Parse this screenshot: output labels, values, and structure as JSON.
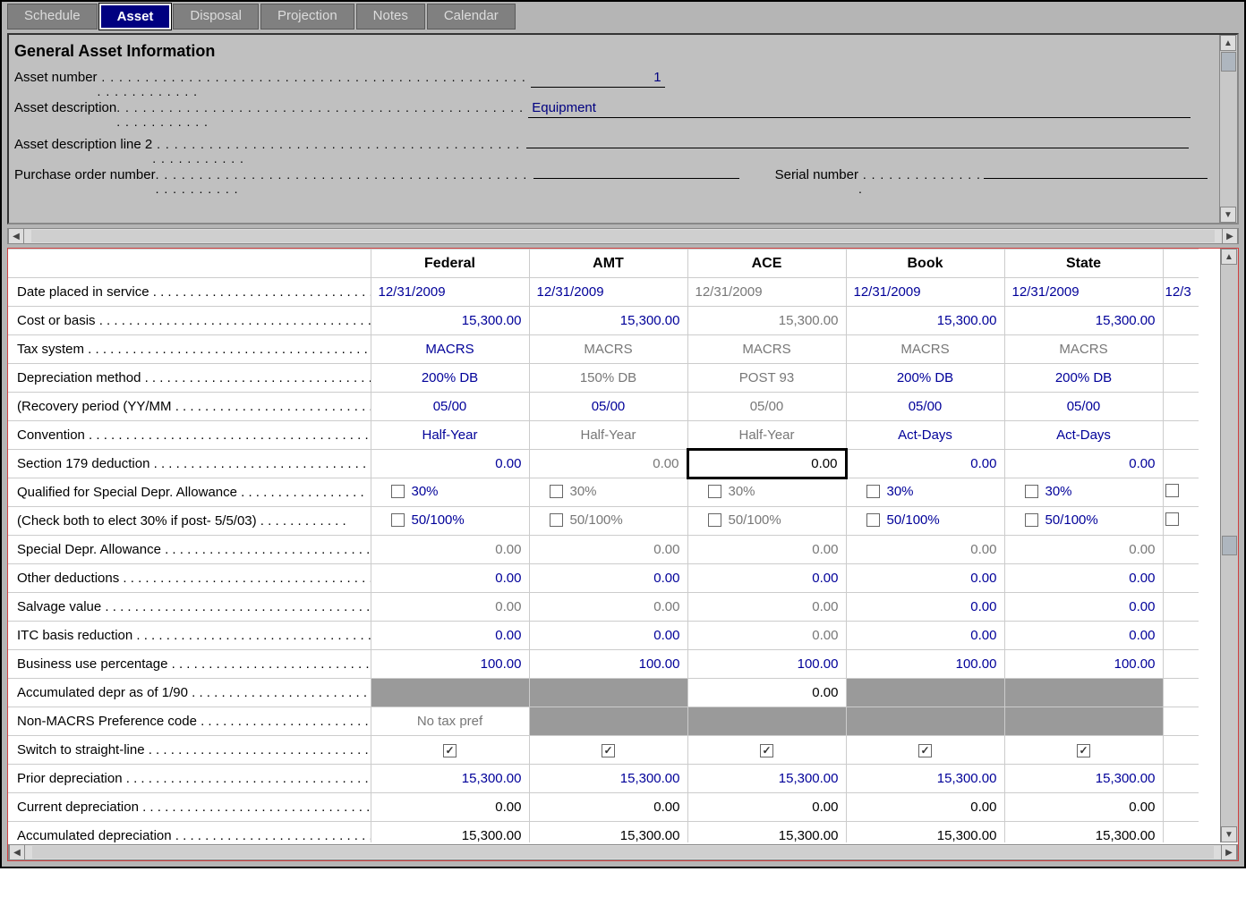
{
  "tabs": [
    "Schedule",
    "Asset",
    "Disposal",
    "Projection",
    "Notes",
    "Calendar"
  ],
  "active_tab": 1,
  "section_title": "General Asset Information",
  "info": {
    "asset_number_label": "Asset number",
    "asset_number": "1",
    "asset_description_label": "Asset description",
    "asset_description": "Equipment",
    "asset_description2_label": "Asset description line 2",
    "asset_description2": "",
    "po_label": "Purchase order number",
    "po": "",
    "serial_label": "Serial number",
    "serial": ""
  },
  "columns": [
    "Federal",
    "AMT",
    "ACE",
    "Book",
    "State"
  ],
  "row_labels": {
    "date": "Date placed in service",
    "cost": "Cost or basis",
    "taxsys": "Tax system",
    "depmethod": "Depreciation method",
    "recovery": "(Recovery period (YY/MM",
    "convention": "Convention",
    "s179": "Section 179 deduction",
    "qual": "Qualified for Special Depr. Allowance",
    "check30": "(Check both to elect 30% if post- 5/5/03)",
    "sda": "Special Depr. Allowance",
    "otherded": "Other deductions",
    "salvage": "Salvage value",
    "itc": "ITC basis reduction",
    "buspct": "Business use percentage",
    "accum190": "Accumulated depr as of 1/90",
    "nonmacrs": "Non-MACRS Preference code",
    "switch": "Switch to straight-line",
    "priordep": "Prior depreciation",
    "currdep": "Current depreciation",
    "accumdep": "Accumulated depreciation"
  },
  "grid": {
    "date": {
      "v": [
        "12/31/2009",
        "12/31/2009",
        "12/31/2009",
        "12/31/2009",
        "12/31/2009"
      ],
      "cls": [
        "blue",
        "blue",
        "gray",
        "blue",
        "blue"
      ],
      "align": "left",
      "extra": "12/3"
    },
    "cost": {
      "v": [
        "15,300.00",
        "15,300.00",
        "15,300.00",
        "15,300.00",
        "15,300.00"
      ],
      "cls": [
        "blue",
        "blue",
        "gray",
        "blue",
        "blue"
      ]
    },
    "taxsys": {
      "v": [
        "MACRS",
        "MACRS",
        "MACRS",
        "MACRS",
        "MACRS"
      ],
      "cls": [
        "blue",
        "gray",
        "gray",
        "gray",
        "gray"
      ],
      "align": "center"
    },
    "depmethod": {
      "v": [
        "200% DB",
        "150% DB",
        "POST 93",
        "200% DB",
        "200% DB"
      ],
      "cls": [
        "blue",
        "gray",
        "gray",
        "blue",
        "blue"
      ],
      "align": "center"
    },
    "recovery": {
      "v": [
        "05/00",
        "05/00",
        "05/00",
        "05/00",
        "05/00"
      ],
      "cls": [
        "blue",
        "blue",
        "gray",
        "blue",
        "blue"
      ],
      "align": "center"
    },
    "convention": {
      "v": [
        "Half-Year",
        "Half-Year",
        "Half-Year",
        "Act-Days",
        "Act-Days"
      ],
      "cls": [
        "blue",
        "gray",
        "gray",
        "blue",
        "blue"
      ],
      "align": "center"
    },
    "s179": {
      "v": [
        "0.00",
        "0.00",
        "0.00",
        "0.00",
        "0.00"
      ],
      "cls": [
        "blue",
        "gray",
        "black",
        "blue",
        "blue"
      ],
      "sel": 2
    },
    "qual": {
      "v": [
        "30%",
        "30%",
        "30%",
        "30%",
        "30%"
      ],
      "cls": [
        "blue",
        "gray",
        "gray",
        "blue",
        "blue"
      ],
      "chk": true
    },
    "check30": {
      "v": [
        "50/100%",
        "50/100%",
        "50/100%",
        "50/100%",
        "50/100%"
      ],
      "cls": [
        "blue",
        "gray",
        "gray",
        "blue",
        "blue"
      ],
      "chk": true
    },
    "sda": {
      "v": [
        "0.00",
        "0.00",
        "0.00",
        "0.00",
        "0.00"
      ],
      "cls": [
        "gray",
        "gray",
        "gray",
        "gray",
        "gray"
      ]
    },
    "otherded": {
      "v": [
        "0.00",
        "0.00",
        "0.00",
        "0.00",
        "0.00"
      ],
      "cls": [
        "blue",
        "blue",
        "blue",
        "blue",
        "blue"
      ]
    },
    "salvage": {
      "v": [
        "0.00",
        "0.00",
        "0.00",
        "0.00",
        "0.00"
      ],
      "cls": [
        "gray",
        "gray",
        "gray",
        "blue",
        "blue"
      ]
    },
    "itc": {
      "v": [
        "0.00",
        "0.00",
        "0.00",
        "0.00",
        "0.00"
      ],
      "cls": [
        "blue",
        "blue",
        "gray",
        "blue",
        "blue"
      ]
    },
    "buspct": {
      "v": [
        "100.00",
        "100.00",
        "100.00",
        "100.00",
        "100.00"
      ],
      "cls": [
        "blue",
        "blue",
        "blue",
        "blue",
        "blue"
      ]
    },
    "accum190": {
      "v": [
        "",
        "",
        "0.00",
        "",
        ""
      ],
      "shade": [
        0,
        1,
        3,
        4
      ]
    },
    "nonmacrs": {
      "v": [
        "No tax pref",
        "",
        "",
        "",
        ""
      ],
      "cls": [
        "gray",
        "",
        "",
        "",
        ""
      ],
      "align": "center",
      "shade": [
        1,
        2,
        3,
        4
      ]
    },
    "switch": {
      "tick": [
        true,
        true,
        true,
        true,
        true
      ]
    },
    "priordep": {
      "v": [
        "15,300.00",
        "15,300.00",
        "15,300.00",
        "15,300.00",
        "15,300.00"
      ],
      "cls": [
        "blue",
        "blue",
        "blue",
        "blue",
        "blue"
      ]
    },
    "currdep": {
      "v": [
        "0.00",
        "0.00",
        "0.00",
        "0.00",
        "0.00"
      ],
      "cls": [
        "black",
        "black",
        "black",
        "black",
        "black"
      ]
    },
    "accumdep": {
      "v": [
        "15,300.00",
        "15,300.00",
        "15,300.00",
        "15,300.00",
        "15,300.00"
      ],
      "cls": [
        "black",
        "black",
        "black",
        "black",
        "black"
      ]
    }
  },
  "row_order": [
    "date",
    "cost",
    "taxsys",
    "depmethod",
    "recovery",
    "convention",
    "s179",
    "qual",
    "check30",
    "sda",
    "otherded",
    "salvage",
    "itc",
    "buspct",
    "accum190",
    "nonmacrs",
    "switch",
    "priordep",
    "currdep",
    "accumdep"
  ],
  "colors": {
    "blue": "#000099",
    "gray": "#777777",
    "shade": "#9a9a9a",
    "tab_active": "#000080"
  }
}
